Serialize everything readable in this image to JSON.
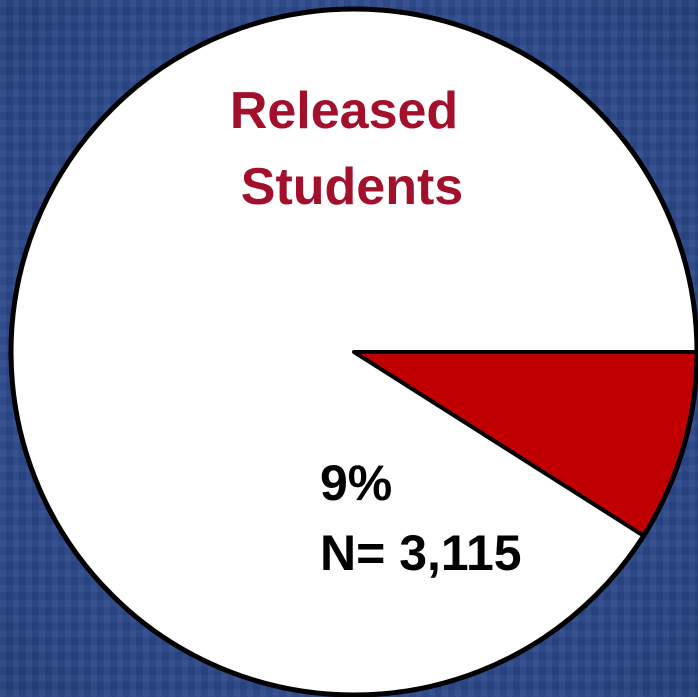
{
  "chart_data": {
    "type": "pie",
    "title_lines": [
      "Released",
      "Students"
    ],
    "slices": [
      {
        "percent": 9,
        "color": "#c00000",
        "labels": [
          "9%",
          "N= 3,115"
        ]
      },
      {
        "percent": 91,
        "color": "#ffffff",
        "labels": []
      }
    ],
    "start_angle_deg": 0,
    "direction": "clockwise",
    "outline_color": "#000000",
    "legend": "none"
  }
}
